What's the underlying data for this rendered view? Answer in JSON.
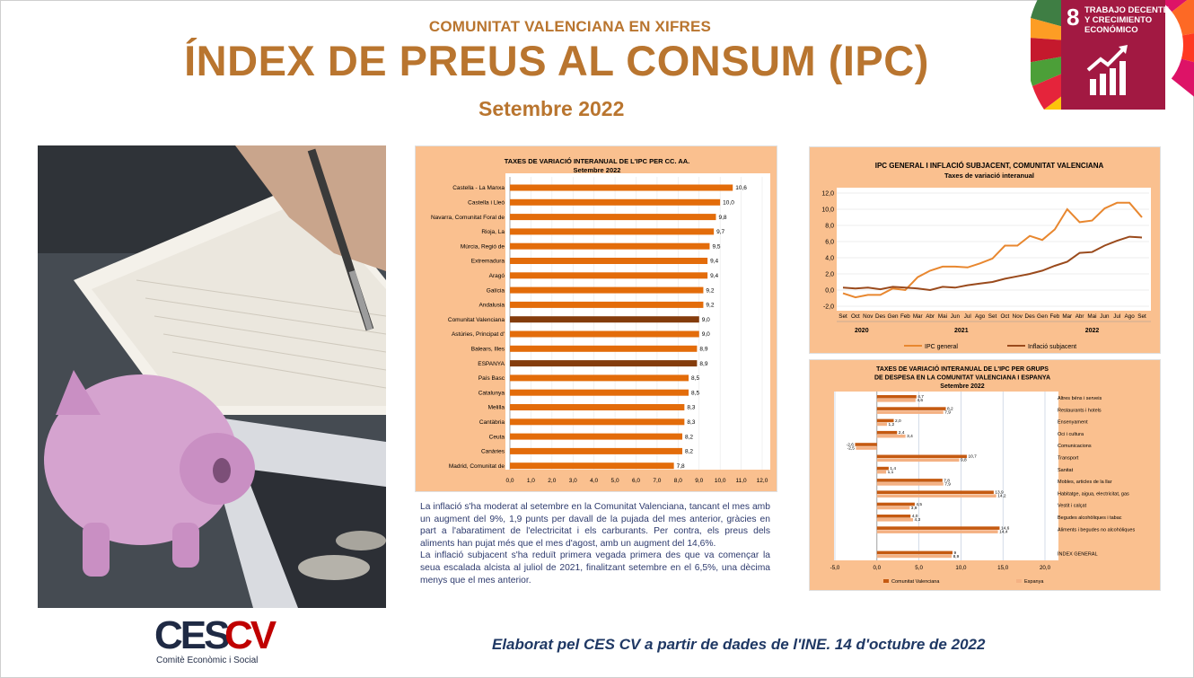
{
  "header": {
    "kicker": "COMUNITAT VALENCIANA EN XIFRES",
    "title": "ÍNDEX DE PREUS AL CONSUM (IPC)",
    "subtitle": "Setembre 2022"
  },
  "sdg_badge": {
    "number": "8",
    "line1": "TRABAJO DECENTE",
    "line2": "Y CRECIMIENTO",
    "line3": "ECONÓMICO"
  },
  "colors": {
    "accent": "#b9752f",
    "bar_orange": "#e36c0a",
    "bar_brown": "#843c0c",
    "panel_bg": "#fac08f",
    "text_blue": "#2e3b6e"
  },
  "chart_data": [
    {
      "type": "bar",
      "orientation": "horizontal",
      "title": "TAXES DE VARIACIÓ INTERANUAL DE L'IPC PER CC. AA.",
      "subtitle": "Setembre 2022",
      "categories": [
        "Castella - La Manxa",
        "Castella i Lleó",
        "Navarra, Comunitat Foral de",
        "Rioja, La",
        "Múrcia, Regió de",
        "Extremadura",
        "Aragó",
        "Galícia",
        "Andalusia",
        "Comunitat Valenciana",
        "Astúries, Principat d'",
        "Balears, Illes",
        "ESPANYA",
        "País Basc",
        "Catalunya",
        "Melilla",
        "Cantàbria",
        "Ceuta",
        "Canàries",
        "Madrid, Comunitat de"
      ],
      "values": [
        10.6,
        10.0,
        9.8,
        9.7,
        9.5,
        9.4,
        9.4,
        9.2,
        9.2,
        9.0,
        9.0,
        8.9,
        8.9,
        8.5,
        8.5,
        8.3,
        8.3,
        8.2,
        8.2,
        7.8
      ],
      "value_labels": [
        "10,6",
        "10,0",
        "9,8",
        "9,7",
        "9,5",
        "9,4",
        "9,4",
        "9,2",
        "9,2",
        "9,0",
        "9,0",
        "8,9",
        "8,9",
        "8,5",
        "8,5",
        "8,3",
        "8,3",
        "8,2",
        "8,2",
        "7,8"
      ],
      "highlight": [
        "Comunitat Valenciana",
        "ESPANYA"
      ],
      "xlim": [
        0,
        12
      ],
      "x_ticks": [
        "0,0",
        "1,0",
        "2,0",
        "3,0",
        "4,0",
        "5,0",
        "6,0",
        "7,0",
        "8,0",
        "9,0",
        "10,0",
        "11,0",
        "12,0"
      ]
    },
    {
      "type": "line",
      "title": "IPC GENERAL I INFLACIÓ SUBJACENT, COMUNITAT VALENCIANA",
      "subtitle": "Taxes de variació interanual",
      "x": [
        "Set",
        "Oct",
        "Nov",
        "Des",
        "Gen",
        "Feb",
        "Mar",
        "Abr",
        "Mai",
        "Jun",
        "Jul",
        "Ago",
        "Set",
        "Oct",
        "Nov",
        "Des",
        "Gen",
        "Feb",
        "Mar",
        "Abr",
        "Mai",
        "Jun",
        "Jul",
        "Ago",
        "Set"
      ],
      "year_groups": [
        {
          "label": "2020",
          "from": 0,
          "to": 3
        },
        {
          "label": "2021",
          "from": 4,
          "to": 15
        },
        {
          "label": "2022",
          "from": 16,
          "to": 24
        }
      ],
      "series": [
        {
          "name": "IPC general",
          "color": "#e8872f",
          "values": [
            -0.4,
            -0.9,
            -0.6,
            -0.6,
            0.2,
            0.0,
            1.6,
            2.4,
            2.9,
            2.9,
            2.8,
            3.3,
            3.9,
            5.5,
            5.5,
            6.7,
            6.2,
            7.5,
            10.0,
            8.4,
            8.6,
            10.1,
            10.8,
            10.8,
            9.0
          ]
        },
        {
          "name": "Inflació subjacent",
          "color": "#9a4a1c",
          "values": [
            0.3,
            0.2,
            0.3,
            0.1,
            0.4,
            0.3,
            0.2,
            0.0,
            0.4,
            0.3,
            0.6,
            0.8,
            1.0,
            1.4,
            1.7,
            2.0,
            2.4,
            3.0,
            3.5,
            4.6,
            4.7,
            5.5,
            6.1,
            6.6,
            6.5
          ]
        }
      ],
      "ylim": [
        -2,
        12
      ],
      "y_ticks": [
        "-2,0",
        "0,0",
        "2,0",
        "4,0",
        "6,0",
        "8,0",
        "10,0",
        "12,0"
      ],
      "legend_placement": "bottom"
    },
    {
      "type": "bar",
      "orientation": "horizontal",
      "title_lines": [
        "TAXES DE VARIACIÓ INTERANUAL DE L'IPC PER GRUPS",
        "DE DESPESA EN LA COMUNITAT VALENCIANA I ESPANYA",
        "Setembre 2022"
      ],
      "categories": [
        "Altres béns i serveis",
        "Restaurants i hotels",
        "Ensenyament",
        "Oci i cultura",
        "Comunicacions",
        "Transport",
        "Sanitat",
        "Mobles, articles de la llar",
        "Habitatge, aigua, electricitat, gas",
        "Vestit i calçat",
        "Begudes alcohòliques i tabac",
        "Aliments i begudes no alcohòliques",
        "ÍNDEX GENERAL"
      ],
      "series": [
        {
          "name": "Comunitat Valenciana",
          "color": "#c55a11",
          "values": [
            4.7,
            8.2,
            2.0,
            2.4,
            -2.6,
            10.7,
            1.4,
            7.8,
            13.9,
            4.5,
            4.0,
            14.6,
            9.0
          ],
          "labels": [
            "4,7",
            "8,2",
            "2,0",
            "2,4",
            "-2,6",
            "10,7",
            "1,4",
            "7,8",
            "13,9",
            "4,5",
            "4,0",
            "14,6",
            "9"
          ]
        },
        {
          "name": "Espanya",
          "color": "#f4b183",
          "values": [
            4.6,
            7.9,
            1.2,
            3.4,
            -2.5,
            9.8,
            1.1,
            7.9,
            14.2,
            3.9,
            4.3,
            14.4,
            8.9
          ],
          "labels": [
            "4,6",
            "7,9",
            "1,2",
            "3,4",
            "-2,5",
            "9,8",
            "1,1",
            "7,9",
            "14,2",
            "3,9",
            "4,3",
            "14,4",
            "8,9"
          ]
        }
      ],
      "xlim": [
        -5,
        20
      ],
      "x_ticks": [
        "-5,0",
        "0,0",
        "5,0",
        "10,0",
        "15,0",
        "20,0"
      ],
      "legend_placement": "bottom"
    }
  ],
  "body_text": {
    "p1": "La inflació s'ha moderat al setembre en la Comunitat Valenciana, tancant el mes amb un augment del 9%, 1,9 punts per davall de la pujada del mes anterior, gràcies en part a l'abaratiment de l'electricitat i els carburants. Per contra, els preus dels aliments han pujat més que el mes d'agost, amb un augment del 14,6%.",
    "p2": "La inflació subjacent s'ha reduït primera vegada primera des que va començar la seua escalada alcista al juliol de 2021, finalitzant setembre en el 6,5%, una dècima menys que el mes anterior."
  },
  "logo": {
    "name": "CESCV",
    "tagline": "Comitè Econòmic i Social"
  },
  "footer": {
    "credit": "Elaborat pel CES CV a partir de dades de l'INE. 14 d'octubre de 2022"
  }
}
